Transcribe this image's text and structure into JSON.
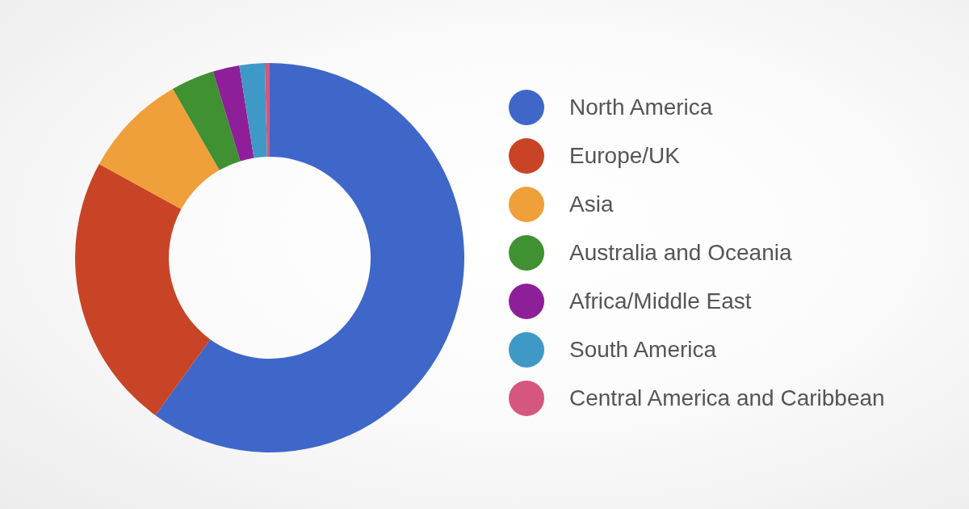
{
  "chart_data": {
    "type": "pie",
    "categories": [
      "North America",
      "Europe/UK",
      "Asia",
      "Australia and Oceania",
      "Africa/Middle East",
      "South America",
      "Central America and Caribbean"
    ],
    "values": [
      60,
      23,
      8.7,
      3.6,
      2.2,
      2.1,
      0.4
    ],
    "colors": [
      "#3f67c9",
      "#c94426",
      "#f0a03a",
      "#3f9132",
      "#8e1f99",
      "#3e99c6",
      "#d5577d"
    ],
    "legend": "right"
  }
}
